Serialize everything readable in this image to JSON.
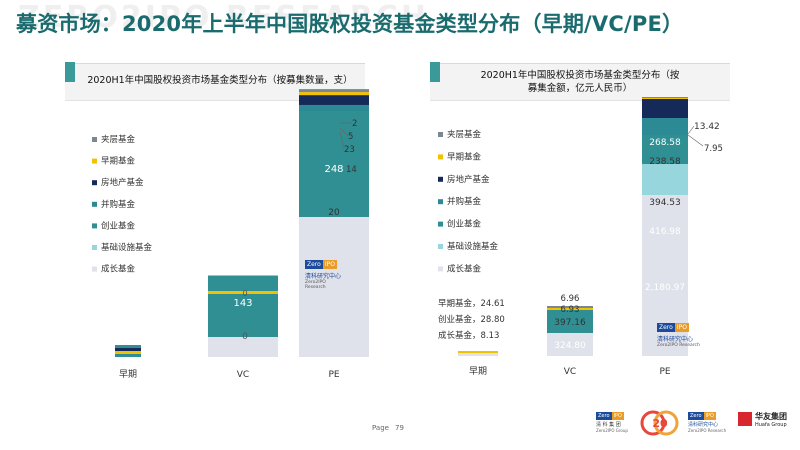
{
  "slide": {
    "title": "募资市场：2020年上半年中国股权投资基金类型分布（早期/VC/PE）",
    "watermark": "ZERO2IPO RESEARCH",
    "page_label": "Page",
    "page_number": "79"
  },
  "legend_labels": [
    "夹层基金",
    "早期基金",
    "房地产基金",
    "并购基金",
    "创业基金",
    "基础设施基金",
    "成长基金"
  ],
  "colors": {
    "mezzanine": "#7b8791",
    "early": "#f2c200",
    "real_estate": "#162a5a",
    "buyout": "#2b8a93",
    "venture": "#2f8f93",
    "infrastructure": "#97d6dc",
    "growth": "#dfe2ea",
    "title": "#1a6b6e"
  },
  "chart_data": [
    {
      "type": "bar",
      "stacked": true,
      "title": "2020H1年中国股权投资市场基金类型分布（按募集数量，支）",
      "categories": [
        "早期",
        "VC",
        "PE"
      ],
      "series": [
        {
          "name": "成长基金",
          "values": [
            0,
            0,
            20
          ]
        },
        {
          "name": "基础设施基金",
          "values": [
            0,
            0,
            0
          ]
        },
        {
          "name": "创业基金",
          "values": [
            0,
            143,
            248
          ]
        },
        {
          "name": "并购基金",
          "values": [
            0,
            0,
            14
          ]
        },
        {
          "name": "房地产基金",
          "values": [
            0,
            0,
            23
          ]
        },
        {
          "name": "早期基金",
          "values": [
            0,
            0,
            5
          ]
        },
        {
          "name": "夹层基金",
          "values": [
            0,
            0,
            2
          ]
        }
      ],
      "labels": {
        "vc_growth": "0",
        "vc_venture": "143",
        "vc_top": "0",
        "pe_growth": "20",
        "pe_venture": "248",
        "pe_buyout": "14",
        "pe_real_estate": "23",
        "pe_early": "5",
        "pe_mezzanine": "2"
      }
    },
    {
      "type": "bar",
      "stacked": true,
      "title": "2020H1年中国股权投资市场基金类型分布（按募集金额，亿元人民币）",
      "categories": [
        "早期",
        "VC",
        "PE"
      ],
      "series": [
        {
          "name": "成长基金",
          "values": [
            8.13,
            324.8,
            2180.97
          ]
        },
        {
          "name": "基础设施基金",
          "values": [
            0,
            0,
            416.98
          ]
        },
        {
          "name": "创业基金",
          "values": [
            28.8,
            397.16,
            394.53
          ]
        },
        {
          "name": "并购基金",
          "values": [
            0,
            0,
            238.58
          ]
        },
        {
          "name": "房地产基金",
          "values": [
            0,
            0,
            268.58
          ]
        },
        {
          "name": "早期基金",
          "values": [
            24.61,
            6.93,
            7.95
          ]
        },
        {
          "name": "夹层基金",
          "values": [
            0,
            6.96,
            13.42
          ]
        }
      ],
      "labels": {
        "early_a": "早期基金，24.61",
        "early_b": "创业基金，28.80",
        "early_c": "成长基金，8.13",
        "vc_growth": "324.80",
        "vc_venture": "397.16",
        "vc_early": "6.93",
        "vc_mezz": "6.96",
        "pe_growth": "2,180.97",
        "pe_infra": "416.98",
        "pe_venture": "394.53",
        "pe_buyout": "238.58",
        "pe_real_estate": "268.58",
        "pe_early": "7.95",
        "pe_mezz": "13.42"
      }
    }
  ],
  "stamp": {
    "zero": "Zero",
    "ipo": "IPO",
    "name": "清科研究中心",
    "sub": "Zero2IPO Research"
  },
  "footer": {
    "logo1_zero": "Zero",
    "logo1_ipo": "IPO",
    "logo1_cn": "清 科 集 团",
    "logo1_en": "Zero2IPO Group",
    "logo2_mark": "20",
    "logo3_zero": "Zero",
    "logo3_ipo": "IPO",
    "logo3_cn": "清科研究中心",
    "logo3_en": "Zero2IPO Research",
    "logo4_cn": "华友集团",
    "logo4_en": "Huafa Group"
  }
}
